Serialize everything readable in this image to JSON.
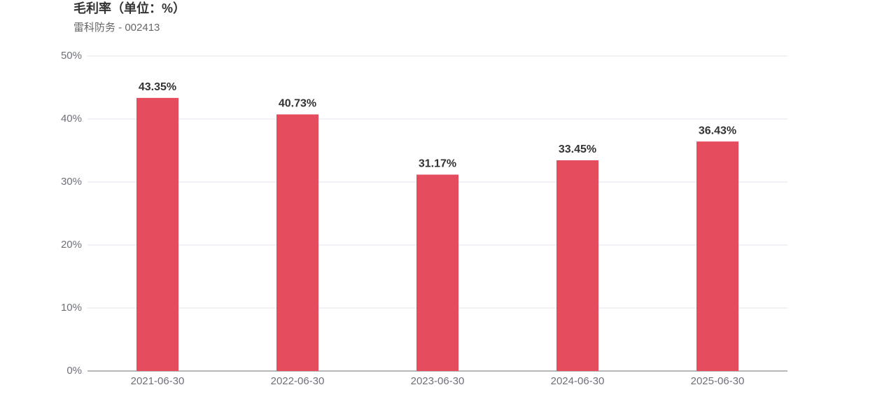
{
  "chart_data": {
    "type": "bar",
    "title": "毛利率（单位：%）",
    "subtitle": "雷科防务 - 002413",
    "categories": [
      "2021-06-30",
      "2022-06-30",
      "2023-06-30",
      "2024-06-30",
      "2025-06-30"
    ],
    "values": [
      43.35,
      40.73,
      31.17,
      33.45,
      36.43
    ],
    "value_labels": [
      "43.35%",
      "40.73%",
      "31.17%",
      "33.45%",
      "36.43%"
    ],
    "color": "#e54d5f",
    "ylim": [
      0,
      50
    ],
    "yticks": [
      {
        "value": 0,
        "label": "0%"
      },
      {
        "value": 10,
        "label": "10%"
      },
      {
        "value": 20,
        "label": "20%"
      },
      {
        "value": 30,
        "label": "30%"
      },
      {
        "value": 40,
        "label": "40%"
      },
      {
        "value": 50,
        "label": "50%"
      }
    ],
    "grid": true
  }
}
